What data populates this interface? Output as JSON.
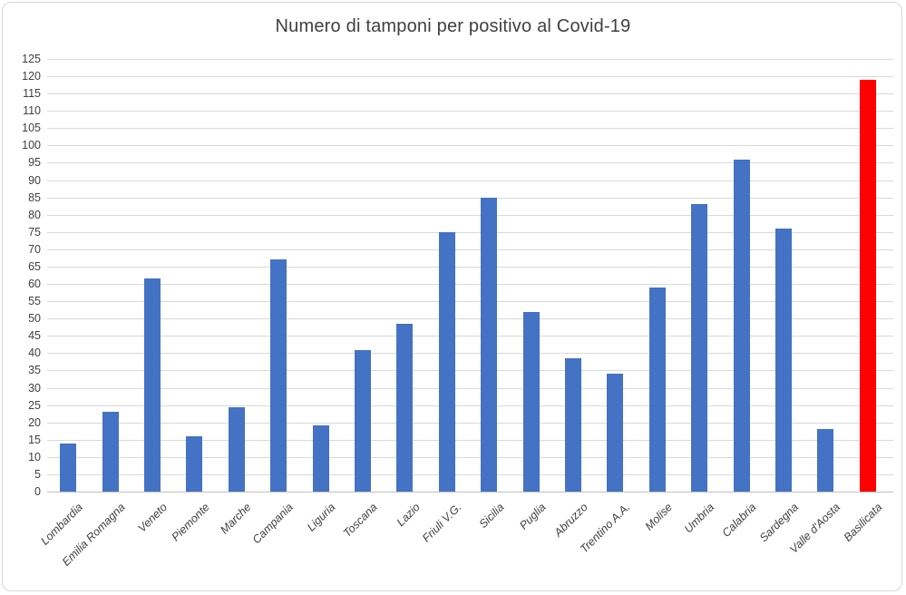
{
  "title": "Numero di tamponi per positivo al Covid-19",
  "colors": {
    "bar": "#4472C4",
    "highlight_bar": "#FF0000",
    "gridline": "#D9D9D9",
    "axis_text": "#404040",
    "title_text": "#404040"
  },
  "chart_data": {
    "type": "bar",
    "title": "Numero di tamponi per positivo al Covid-19",
    "categories": [
      "Lombardia",
      "Emilia Romagna",
      "Veneto",
      "Piemonte",
      "Marche",
      "Campania",
      "Liguria",
      "Toscana",
      "Lazio",
      "Friuli V.G.",
      "Sicilia",
      "Puglia",
      "Abruzzo",
      "Trentino A.A.",
      "Molise",
      "Umbria",
      "Calabria",
      "Sardegna",
      "Valle d'Aosta",
      "Basilicata"
    ],
    "values": [
      14,
      23,
      61.5,
      16,
      24.5,
      67,
      19,
      41,
      48.5,
      75,
      85,
      52,
      38.5,
      34,
      59,
      83,
      96,
      76,
      18,
      119
    ],
    "highlight_category": "Basilicata",
    "series_color": "#4472C4",
    "highlight_color": "#FF0000",
    "xlabel": "",
    "ylabel": "",
    "ylim": [
      0,
      125
    ],
    "ytick_step": 5,
    "grid": true,
    "legend": "none"
  }
}
